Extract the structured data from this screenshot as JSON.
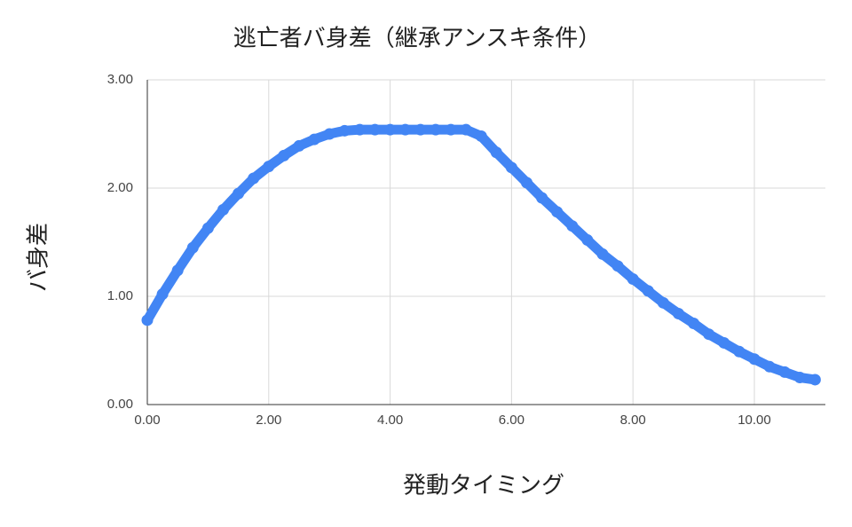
{
  "chart_data": {
    "type": "scatter",
    "title": "逃亡者バ身差（継承アンスキ条件）",
    "x_label": "発動タイミング",
    "y_label": "バ身差",
    "color": "#4285f4",
    "grid": true,
    "x": [
      0,
      0.25,
      0.5,
      0.75,
      1,
      1.25,
      1.5,
      1.75,
      2,
      2.25,
      2.5,
      2.75,
      3,
      3.25,
      3.5,
      3.75,
      4,
      4.25,
      4.5,
      4.75,
      5,
      5.25,
      5.5,
      5.75,
      6,
      6.25,
      6.5,
      6.75,
      7,
      7.25,
      7.5,
      7.75,
      8,
      8.25,
      8.5,
      8.75,
      9,
      9.25,
      9.5,
      9.75,
      10,
      10.25,
      10.5,
      10.75,
      11
    ],
    "values": [
      0.78,
      1.02,
      1.24,
      1.45,
      1.63,
      1.8,
      1.95,
      2.09,
      2.2,
      2.3,
      2.39,
      2.45,
      2.5,
      2.53,
      2.54,
      2.54,
      2.54,
      2.54,
      2.54,
      2.54,
      2.54,
      2.54,
      2.48,
      2.33,
      2.19,
      2.05,
      1.91,
      1.78,
      1.65,
      1.52,
      1.39,
      1.28,
      1.16,
      1.05,
      0.94,
      0.84,
      0.75,
      0.65,
      0.57,
      0.49,
      0.42,
      0.35,
      0.3,
      0.25,
      0.23
    ],
    "xlim": [
      0,
      11.17
    ],
    "ylim": [
      0,
      3
    ],
    "xticks": [
      {
        "value": 0,
        "label": "0.00"
      },
      {
        "value": 2,
        "label": "2.00"
      },
      {
        "value": 4,
        "label": "4.00"
      },
      {
        "value": 6,
        "label": "6.00"
      },
      {
        "value": 8,
        "label": "8.00"
      },
      {
        "value": 10,
        "label": "10.00"
      }
    ],
    "yticks": [
      {
        "value": 0,
        "label": "0.00"
      },
      {
        "value": 1,
        "label": "1.00"
      },
      {
        "value": 2,
        "label": "2.00"
      },
      {
        "value": 3,
        "label": "3.00"
      }
    ]
  }
}
